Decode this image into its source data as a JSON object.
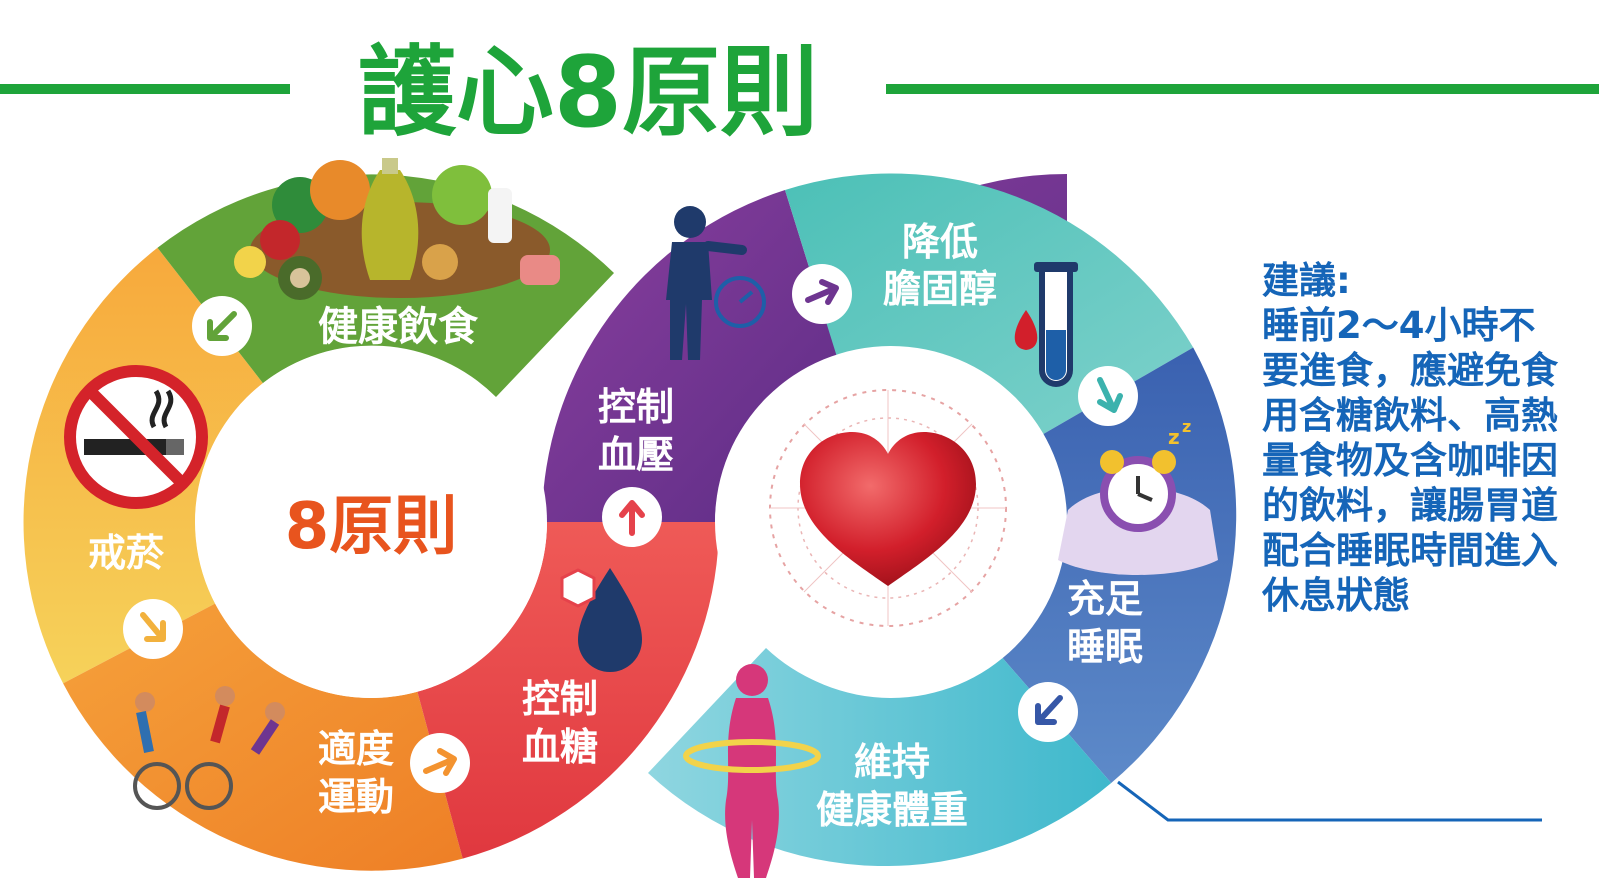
{
  "title": "護心8原則",
  "center_label": "8原則",
  "segments": [
    {
      "label_1": "健康飲食",
      "label_2": "",
      "color": "#62a339"
    },
    {
      "label_1": "降低",
      "label_2": "膽固醇",
      "color": "#3bb2ad"
    },
    {
      "label_1": "控制",
      "label_2": "血壓",
      "color": "#6e3590"
    },
    {
      "label_1": "充足",
      "label_2": "睡眠",
      "color": "#3657a7"
    },
    {
      "label_1": "戒菸",
      "label_2": "",
      "color": "#f2b13d"
    },
    {
      "label_1": "控制",
      "label_2": "血糖",
      "color": "#e5424b"
    },
    {
      "label_1": "適度",
      "label_2": "運動",
      "color": "#f39330"
    },
    {
      "label_1": "維持",
      "label_2": "健康體重",
      "color": "#56bfcf"
    }
  ],
  "advice": {
    "heading": "建議:",
    "body": "睡前2～4小時不要進食，應避免食用含糖飲料、高熱量食物及含咖啡因的飲料，讓腸胃道配合睡眠時間進入休息狀態"
  },
  "colors": {
    "title_green": "#1ea43a",
    "center_orange": "#e8541e",
    "advice_blue": "#1565b8"
  },
  "icons": [
    "food-icon",
    "no-smoking-icon",
    "runner-blood-pressure-icon",
    "test-tube-icon",
    "alarm-clock-pillow-icon",
    "heart-network-icon",
    "sugar-drop-icon",
    "sports-people-icon",
    "body-waist-icon",
    "arrow-icon"
  ]
}
